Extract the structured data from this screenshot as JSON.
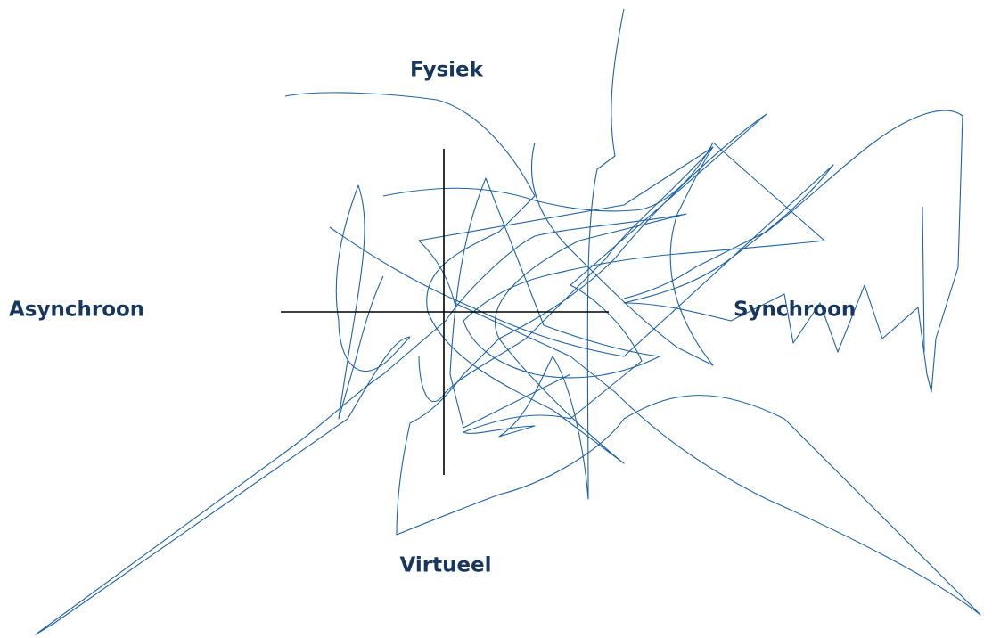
{
  "labels": {
    "top": "Fysiek",
    "bottom": "Virtueel",
    "left": "Asynchroon",
    "right": "Synchroon"
  }
}
